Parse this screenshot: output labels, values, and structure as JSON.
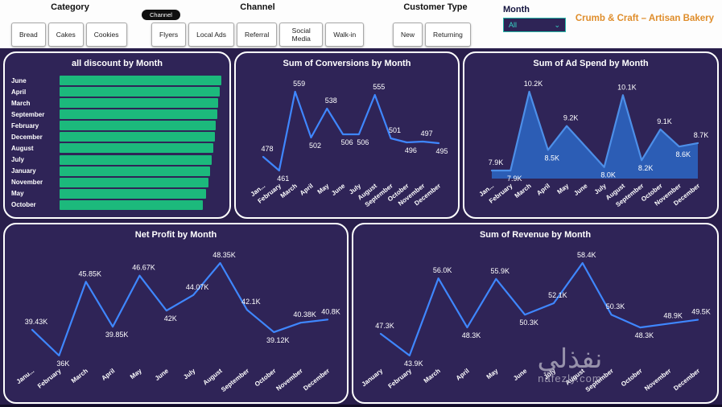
{
  "header": {
    "category": {
      "label": "Category",
      "options": [
        "Bread",
        "Cakes",
        "Cookies"
      ]
    },
    "channel": {
      "label": "Channel",
      "chip": "Channel",
      "options": [
        "Flyers",
        "Local Ads",
        "Referral",
        "Social Media",
        "Walk-in"
      ]
    },
    "customer_type": {
      "label": "Customer Type",
      "options": [
        "New",
        "Returning"
      ]
    },
    "month": {
      "label": "Month",
      "selected": "All",
      "chevron_icon": "⌄"
    },
    "report_title": "Crumb & Craft – Artisan Bakery"
  },
  "colors": {
    "page_bg": "#291e4b",
    "panel_bg": "#2f2457",
    "bar_green": "#1cb97c",
    "line_blue": "#3f87ff",
    "area_fill": "#2d63bd",
    "title_orange": "#df8d2b",
    "dropdown_teal": "#37d6c5"
  },
  "watermark": {
    "arabic": "نفذلي",
    "site": "nafezly.com"
  },
  "chart_data": [
    {
      "type": "bar",
      "orientation": "horizontal",
      "title": "all discount by Month",
      "categories": [
        "June",
        "April",
        "March",
        "September",
        "February",
        "December",
        "August",
        "July",
        "January",
        "November",
        "May",
        "October"
      ],
      "values": [
        100,
        99,
        98.2,
        97.4,
        96.6,
        95.8,
        95.0,
        94.2,
        93.2,
        92.2,
        90.6,
        88.6
      ],
      "value_labels_shown": false,
      "bar_color": "#1cb97c"
    },
    {
      "type": "line",
      "title": "Sum of Conversions by Month",
      "categories": [
        "Jan...",
        "February",
        "March",
        "April",
        "May",
        "June",
        "July",
        "August",
        "September",
        "October",
        "November",
        "December"
      ],
      "values": [
        478,
        461,
        559,
        502,
        538,
        506,
        506,
        555,
        501,
        496,
        497,
        495
      ],
      "labels": [
        "478",
        "461",
        "559",
        "502",
        "538",
        "506",
        "506",
        "555",
        "501",
        "496",
        "497",
        "495"
      ],
      "line_color": "#3f87ff",
      "legend": "off",
      "grid": "off"
    },
    {
      "type": "area",
      "title": "Sum of Ad Spend by Month",
      "categories": [
        "Jan...",
        "February",
        "March",
        "April",
        "May",
        "June",
        "July",
        "August",
        "September",
        "October",
        "November",
        "December"
      ],
      "values": [
        7.9,
        7.9,
        10.2,
        8.5,
        9.2,
        8.6,
        8.0,
        10.1,
        8.2,
        9.1,
        8.6,
        8.7
      ],
      "labels": [
        "7.9K",
        "7.9K",
        "10.2K",
        "8.5K",
        "9.2K",
        "",
        "8.0K",
        "10.1K",
        "8.2K",
        "9.1K",
        "8.6K",
        "8.7K"
      ],
      "line_color": "#4d8fe8",
      "fill_color": "#2d63bd",
      "legend": "off",
      "grid": "off"
    },
    {
      "type": "line",
      "title": "Net Profit by Month",
      "categories": [
        "Janu...",
        "February",
        "March",
        "April",
        "May",
        "June",
        "July",
        "August",
        "September",
        "October",
        "November",
        "December"
      ],
      "values": [
        39.43,
        36,
        45.85,
        39.85,
        46.67,
        42,
        44.07,
        48.35,
        42.1,
        39.12,
        40.38,
        40.8
      ],
      "labels": [
        "39.43K",
        "36K",
        "45.85K",
        "39.85K",
        "46.67K",
        "42K",
        "44.07K",
        "48.35K",
        "42.1K",
        "39.12K",
        "40.38K",
        "40.8K"
      ],
      "line_color": "#3f87ff",
      "legend": "off",
      "grid": "off"
    },
    {
      "type": "line",
      "title": "Sum of Revenue by Month",
      "categories": [
        "January",
        "February",
        "March",
        "April",
        "May",
        "June",
        "July",
        "August",
        "September",
        "October",
        "November",
        "December"
      ],
      "values": [
        47.3,
        43.9,
        56.0,
        48.3,
        55.9,
        50.3,
        52.1,
        58.4,
        50.3,
        48.3,
        48.9,
        49.5
      ],
      "labels": [
        "47.3K",
        "43.9K",
        "56.0K",
        "48.3K",
        "55.9K",
        "50.3K",
        "52.1K",
        "58.4K",
        "50.3K",
        "48.3K",
        "48.9K",
        "49.5K"
      ],
      "line_color": "#3f87ff",
      "legend": "off",
      "grid": "off"
    }
  ]
}
